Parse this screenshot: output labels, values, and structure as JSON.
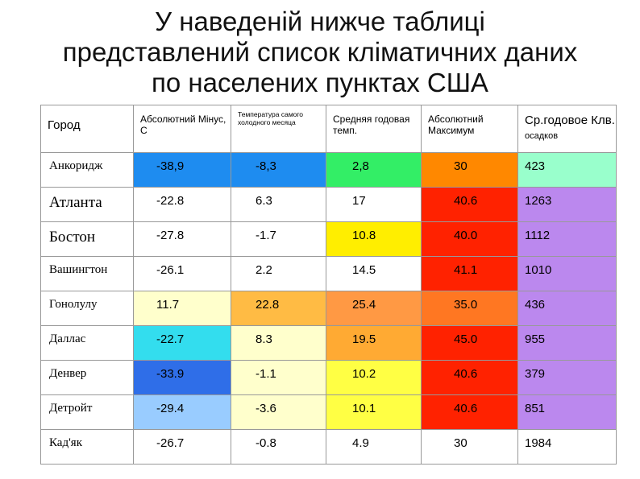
{
  "title_lines": [
    "У наведеній нижче таблиці",
    "представлений список кліматичних даних",
    "по населених пунктах США"
  ],
  "headers": {
    "city": "Город",
    "abs_min": "Абсолютний Мінус, С",
    "coldest_month": "Температура самого холодного месяца",
    "mean_annual": "Средняя годовая темп.",
    "abs_max": "Абсолютний Максимум",
    "precip_main": "Ср.годовое Клв.",
    "precip_small": "осадков"
  },
  "rows": [
    {
      "city": "Анкоридж",
      "abs_min": "-38,9",
      "coldest": "-8,3",
      "mean": "2,8",
      "max": "30",
      "precip": "423"
    },
    {
      "city": "Атланта",
      "abs_min": "-22.8",
      "coldest": "6.3",
      "mean": "17",
      "max": "40.6",
      "precip": "1263"
    },
    {
      "city": "Бостон",
      "abs_min": "-27.8",
      "coldest": "-1.7",
      "mean": "10.8",
      "max": "40.0",
      "precip": "1112"
    },
    {
      "city": "Вашингтон",
      "abs_min": "-26.1",
      "coldest": "2.2",
      "mean": "14.5",
      "max": "41.1",
      "precip": "1010"
    },
    {
      "city": "Гонолулу",
      "abs_min": "11.7",
      "coldest": "22.8",
      "mean": "25.4",
      "max": "35.0",
      "precip": "436"
    },
    {
      "city": "Даллас",
      "abs_min": "-22.7",
      "coldest": "8.3",
      "mean": "19.5",
      "max": "45.0",
      "precip": "955"
    },
    {
      "city": "Денвер",
      "abs_min": "-33.9",
      "coldest": "-1.1",
      "mean": "10.2",
      "max": "40.6",
      "precip": "379"
    },
    {
      "city": "Детройт",
      "abs_min": "-29.4",
      "coldest": "-3.6",
      "mean": "10.1",
      "max": "40.6",
      "precip": "851"
    },
    {
      "city": "Кад'як",
      "abs_min": "-26.7",
      "coldest": "-0.8",
      "mean": "4.9",
      "max": "30",
      "precip": "1984"
    }
  ],
  "cell_colors": [
    [
      "#ffffff",
      "#1e8cf0",
      "#1e8cf0",
      "#33ee66",
      "#ff8800",
      "#99ffcc"
    ],
    [
      "#ffffff",
      "#ffffff",
      "#ffffff",
      "#ffffff",
      "#ff2200",
      "#bb88ee"
    ],
    [
      "#ffffff",
      "#ffffff",
      "#ffffff",
      "#ffee00",
      "#ff2200",
      "#bb88ee"
    ],
    [
      "#ffffff",
      "#ffffff",
      "#ffffff",
      "#ffffff",
      "#ff2200",
      "#bb88ee"
    ],
    [
      "#ffffff",
      "#ffffcc",
      "#ffbb44",
      "#ff9944",
      "#ff7722",
      "#bb88ee"
    ],
    [
      "#ffffff",
      "#33ddee",
      "#ffffcc",
      "#ffaa33",
      "#ff2200",
      "#bb88ee"
    ],
    [
      "#ffffff",
      "#2f6ee8",
      "#ffffcc",
      "#ffff44",
      "#ff2200",
      "#bb88ee"
    ],
    [
      "#ffffff",
      "#99ccff",
      "#ffffcc",
      "#ffff44",
      "#ff2200",
      "#bb88ee"
    ],
    [
      "#ffffff",
      "#ffffff",
      "#ffffff",
      "#ffffff",
      "#ffffff",
      "#ffffff"
    ]
  ]
}
